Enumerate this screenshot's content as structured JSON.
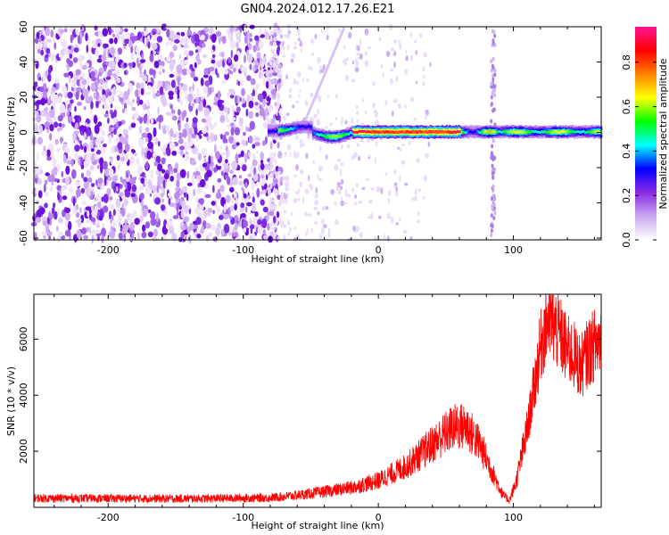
{
  "title": "GN04.2024.012.17.26.E21",
  "chart_data": [
    {
      "type": "heatmap",
      "xlabel": "Height of straight line (km)",
      "ylabel": "Frequency (Hz)",
      "xlim": [
        -255,
        165
      ],
      "ylim": [
        -61,
        60
      ],
      "x_ticks": [
        -200,
        -100,
        0,
        100
      ],
      "y_ticks": [
        -60,
        -40,
        -20,
        0,
        20,
        40,
        60
      ],
      "colorbar": {
        "label": "Normalized spectral amplitude",
        "range": [
          0.0,
          0.96
        ],
        "ticks": [
          0.0,
          0.2,
          0.4,
          0.6,
          0.8
        ],
        "colormap": [
          "#ffffff",
          "#c8a8f0",
          "#8a2be2",
          "#0000ff",
          "#00ffff",
          "#00ff00",
          "#ffff00",
          "#ff8000",
          "#ff0000",
          "#ff1493"
        ]
      },
      "features": [
        {
          "name": "broadband noise",
          "x_range": [
            -255,
            -80
          ],
          "y_range": [
            -60,
            60
          ],
          "amplitude": 0.15
        },
        {
          "name": "narrowband signal near 0 Hz",
          "x_range": [
            -82,
            165
          ],
          "y_center": 0,
          "amplitude_peak": 0.95
        },
        {
          "name": "vertical streak",
          "x": 85,
          "y_range": [
            -60,
            60
          ],
          "amplitude": 0.12
        }
      ]
    },
    {
      "type": "line",
      "xlabel": "Height of straight line (km)",
      "ylabel": "SNR (10 * v/v)",
      "xlim": [
        -255,
        165
      ],
      "ylim": [
        0,
        7600
      ],
      "x_ticks": [
        -200,
        -100,
        0,
        100
      ],
      "y_ticks": [
        2000,
        4000,
        6000
      ],
      "color": "#ff0000",
      "series": [
        {
          "x": [
            -255,
            -200,
            -150,
            -100,
            -80,
            -60,
            -40,
            -20,
            0,
            20,
            40,
            55,
            65,
            75,
            85,
            92,
            97,
            102,
            110,
            115,
            120,
            125,
            130,
            135,
            140,
            145,
            150,
            155,
            160,
            165
          ],
          "values": [
            330,
            320,
            310,
            330,
            340,
            430,
            560,
            700,
            950,
            1450,
            2250,
            2850,
            2900,
            2250,
            1200,
            450,
            250,
            900,
            2700,
            4200,
            5700,
            6700,
            6500,
            6100,
            5600,
            5400,
            5000,
            5500,
            5800,
            6000
          ]
        }
      ]
    }
  ]
}
